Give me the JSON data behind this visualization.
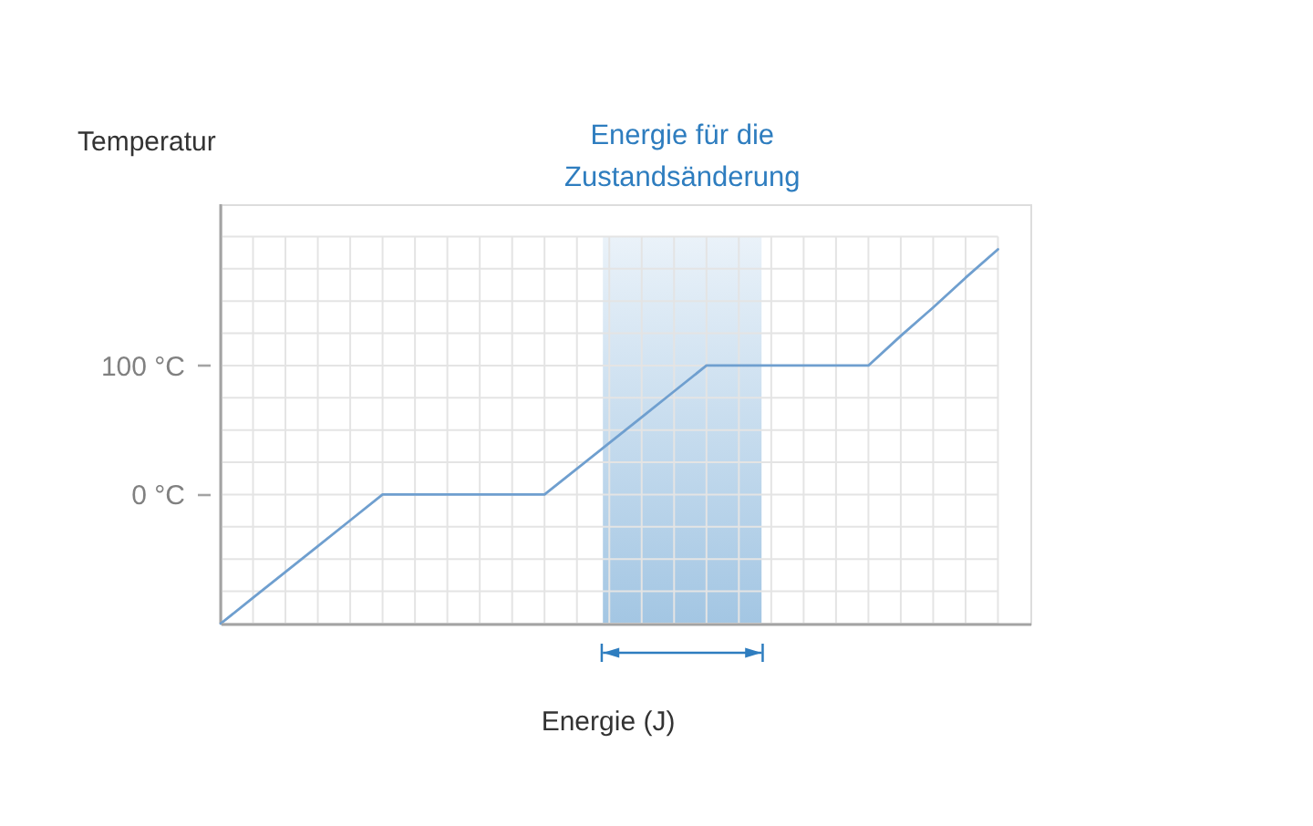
{
  "chart_data": {
    "type": "line",
    "xlabel": "Energie (J)",
    "ylabel": "Temperatur",
    "categories": [
      null,
      null,
      null,
      null,
      null,
      null,
      null,
      null,
      null,
      null,
      null,
      null,
      null,
      null,
      null,
      null,
      null,
      null,
      null,
      null,
      null,
      null,
      null,
      null,
      null
    ],
    "series": [
      {
        "color": "#6f9fcf",
        "values": [
          -100,
          -80,
          -60,
          -40,
          -20,
          0,
          0,
          0,
          0,
          0,
          0,
          20,
          40,
          60,
          80,
          100,
          100,
          100,
          100,
          100,
          100,
          123,
          145,
          168,
          190
        ]
      }
    ],
    "ylim": [
      -100,
      225
    ],
    "yticks": [
      {
        "value": -100,
        "label": null
      },
      {
        "value": -75,
        "label": null
      },
      {
        "value": -50,
        "label": null
      },
      {
        "value": -25,
        "label": null
      },
      {
        "value": 0,
        "label": "0 °C"
      },
      {
        "value": 25,
        "label": null
      },
      {
        "value": 50,
        "label": null
      },
      {
        "value": 75,
        "label": null
      },
      {
        "value": 100,
        "label": "100 °C"
      },
      {
        "value": 125,
        "label": null
      },
      {
        "value": 150,
        "label": null
      },
      {
        "value": 175,
        "label": null
      },
      {
        "value": 200,
        "label": null
      }
    ],
    "annotations": [
      "Energie für die Zustandsänderung"
    ],
    "grid": true,
    "tick_labels": "y",
    "line_style": "solid"
  }
}
